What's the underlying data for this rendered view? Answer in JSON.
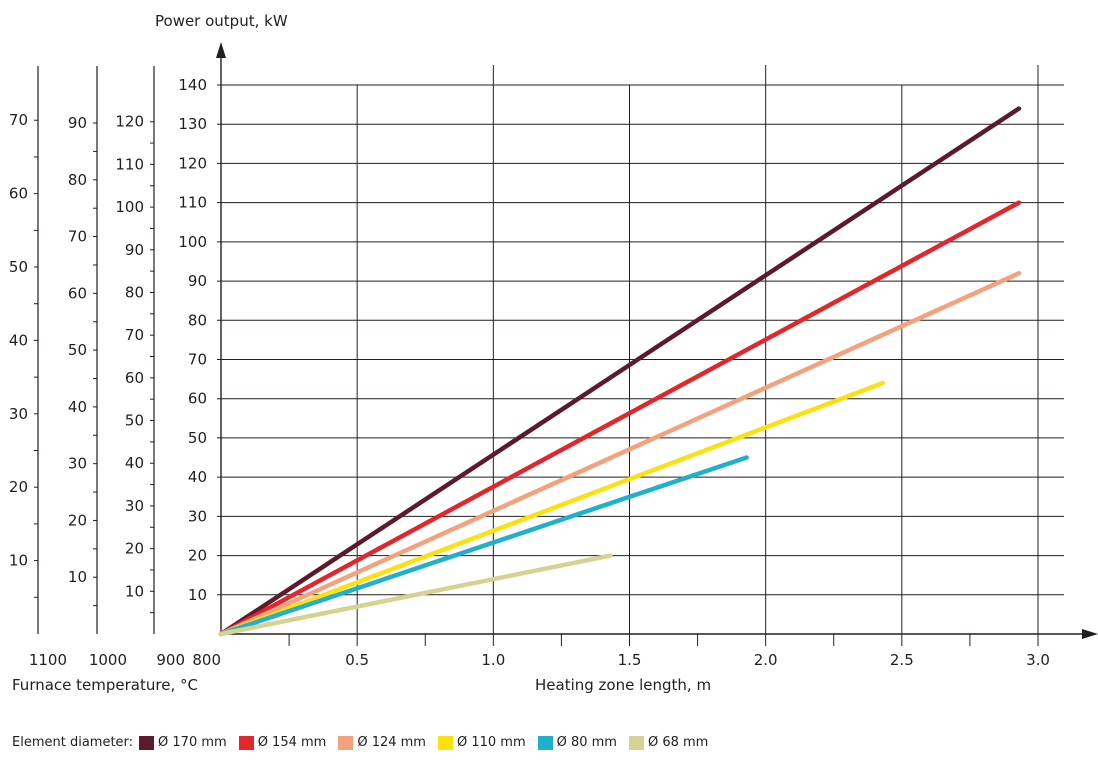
{
  "chart_data": {
    "type": "line",
    "ylabel": "Power output, kW",
    "xlabel": "Heating zone length, m",
    "secondary_xlabel": "Furnace temperature, °C",
    "x_ticks": [
      "0.5",
      "1.0",
      "1.5",
      "2.0",
      "2.5",
      "3.0"
    ],
    "y_ticks": [
      "10",
      "20",
      "30",
      "40",
      "50",
      "60",
      "70",
      "80",
      "90",
      "100",
      "110",
      "120",
      "130",
      "140"
    ],
    "xlim": [
      0,
      3.2
    ],
    "ylim": [
      0,
      140
    ],
    "grid": true,
    "secondary_y_axes": [
      {
        "temperature": "900",
        "max": 120,
        "ticks": [
          "10",
          "20",
          "30",
          "40",
          "50",
          "60",
          "70",
          "80",
          "90",
          "100",
          "110",
          "120"
        ]
      },
      {
        "temperature": "1000",
        "max": 90,
        "ticks": [
          "10",
          "20",
          "30",
          "40",
          "50",
          "60",
          "70",
          "80",
          "90"
        ]
      },
      {
        "temperature": "1100",
        "max": 70,
        "ticks": [
          "10",
          "20",
          "30",
          "40",
          "50",
          "60",
          "70"
        ]
      }
    ],
    "primary_temperature": "800",
    "legend_title": "Element diameter:",
    "series": [
      {
        "name": "Ø 170 mm",
        "color": "#5c1a2b",
        "x": [
          0,
          2.93
        ],
        "y": [
          0,
          134
        ]
      },
      {
        "name": "Ø 154 mm",
        "color": "#e3262b",
        "x": [
          0,
          2.93
        ],
        "y": [
          0,
          110
        ]
      },
      {
        "name": "Ø 124 mm",
        "color": "#f4a27d",
        "x": [
          0,
          2.93
        ],
        "y": [
          0,
          92
        ]
      },
      {
        "name": "Ø 110 mm",
        "color": "#fbe10f",
        "x": [
          0,
          2.43
        ],
        "y": [
          0,
          64
        ]
      },
      {
        "name": "Ø 80 mm",
        "color": "#1fb0cf",
        "x": [
          0,
          1.93
        ],
        "y": [
          0,
          45
        ]
      },
      {
        "name": "Ø 68 mm",
        "color": "#d6d392",
        "x": [
          0,
          1.43
        ],
        "y": [
          0,
          20
        ]
      }
    ]
  }
}
